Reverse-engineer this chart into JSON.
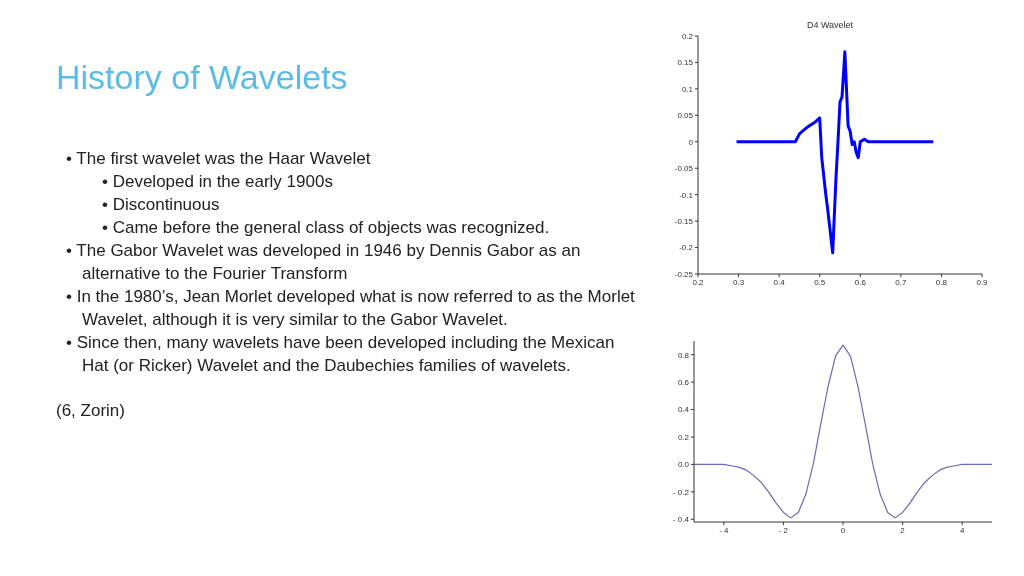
{
  "chart_data": [
    {
      "type": "other",
      "title": "History of Wavelets",
      "annotations": [
        "• The first wavelet was the Haar Wavelet",
        "• Developed in the early 1900s",
        "• Discontinuous",
        "• Came before the general class of objects was recognized.",
        "• The Gabor Wavelet was developed in 1946 by Dennis Gabor as an alternative to the Fourier Transform",
        "• In the 1980’s, Jean Morlet developed what is now referred to as the Morlet Wavelet, although it is very similar to the Gabor Wavelet.",
        "• Since then, many wavelets have been developed including the Mexican Hat (or Ricker) Wavelet and the Daubechies families of wavelets.",
        "(6, Zorin)"
      ]
    },
    {
      "type": "line",
      "title": "D4 Wavelet",
      "xlim": [
        0.2,
        0.9
      ],
      "xticks": [
        0.2,
        0.3,
        0.4,
        0.5,
        0.6,
        0.7,
        0.8,
        0.9
      ],
      "ylim": [
        -0.25,
        0.2
      ],
      "yticks": [
        -0.25,
        -0.2,
        -0.15,
        -0.1,
        -0.05,
        0,
        0.05,
        0.1,
        0.15,
        0.2
      ],
      "grid": false,
      "legend": false,
      "series": [
        {
          "color": "#0000ff",
          "x": [
            0.295,
            0.44,
            0.45,
            0.47,
            0.49,
            0.5,
            0.505,
            0.515,
            0.52,
            0.532,
            0.54,
            0.545,
            0.55,
            0.555,
            0.562,
            0.57,
            0.575,
            0.58,
            0.585,
            0.59,
            0.595,
            0.6,
            0.61,
            0.62,
            0.78
          ],
          "values": [
            0,
            0,
            0.015,
            0.028,
            0.038,
            0.045,
            -0.03,
            -0.1,
            -0.13,
            -0.21,
            -0.07,
            0,
            0.075,
            0.085,
            0.17,
            0.03,
            0.02,
            -0.005,
            0,
            -0.02,
            -0.03,
            0,
            0.005,
            0,
            0
          ]
        }
      ]
    },
    {
      "type": "line",
      "xlim": [
        -5,
        5
      ],
      "xticks": [
        {
          "value": -4,
          "label": "- 4"
        },
        {
          "value": -2,
          "label": "- 2"
        },
        0,
        2,
        4
      ],
      "ylim": [
        -0.42,
        0.9
      ],
      "yticks": [
        {
          "value": -0.4,
          "label": "- 0.4"
        },
        {
          "value": -0.2,
          "label": "- 0.2"
        },
        {
          "value": 0,
          "label": "0.0"
        },
        0.2,
        0.4,
        0.6,
        0.8
      ],
      "grid": false,
      "legend": false,
      "series": [
        {
          "color": "#6b6bb5",
          "x": [
            -5,
            -4.5,
            -4,
            -3.75,
            -3.5,
            -3.25,
            -3,
            -2.75,
            -2.5,
            -2.25,
            -2,
            -1.75,
            -1.5,
            -1.25,
            -1,
            -0.75,
            -0.5,
            -0.25,
            0,
            0.25,
            0.5,
            0.75,
            1,
            1.25,
            1.5,
            1.75,
            2,
            2.25,
            2.5,
            2.75,
            3,
            3.25,
            3.5,
            3.75,
            4,
            4.5,
            5
          ],
          "values": [
            0,
            0,
            0,
            -0.01,
            -0.02,
            -0.04,
            -0.08,
            -0.13,
            -0.2,
            -0.28,
            -0.35,
            -0.39,
            -0.35,
            -0.22,
            0,
            0.29,
            0.57,
            0.79,
            0.87,
            0.79,
            0.57,
            0.29,
            0,
            -0.22,
            -0.35,
            -0.39,
            -0.35,
            -0.28,
            -0.2,
            -0.13,
            -0.08,
            -0.04,
            -0.02,
            -0.01,
            0,
            0,
            0
          ]
        }
      ]
    }
  ]
}
